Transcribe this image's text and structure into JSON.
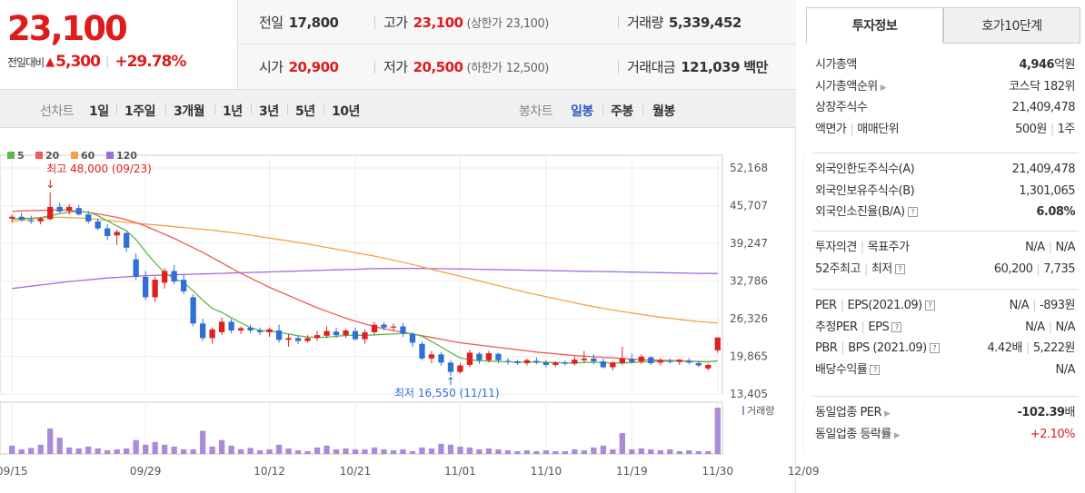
{
  "price": {
    "current": "23,100",
    "change_label": "전일대비",
    "change_amount": "5,300",
    "change_pct": "+29.78%"
  },
  "summary": {
    "prev_close_label": "전일",
    "prev_close": "17,800",
    "high_label": "고가",
    "high": "23,100",
    "upper_limit_label": "(상한가",
    "upper_limit": "23,100)",
    "volume_label": "거래량",
    "volume": "5,339,452",
    "open_label": "시가",
    "open": "20,900",
    "low_label": "저가",
    "low": "20,500",
    "lower_limit_label": "(하한가",
    "lower_limit": "12,500)",
    "trade_value_label": "거래대금",
    "trade_value": "121,039",
    "trade_value_unit": "백만"
  },
  "period_bar": {
    "line_chart_label": "선차트",
    "line_periods": [
      "1일",
      "1주일",
      "3개월",
      "1년",
      "3년",
      "5년",
      "10년"
    ],
    "candle_label": "봉차트",
    "candle_periods": [
      "일봉",
      "주봉",
      "월봉"
    ],
    "candle_selected": "일봉"
  },
  "chart_data": {
    "type": "candlestick",
    "legend": [
      {
        "name": "5",
        "color": "#5bb84a"
      },
      {
        "name": "20",
        "color": "#ef5a5a"
      },
      {
        "name": "60",
        "color": "#f5a04a"
      },
      {
        "name": "120",
        "color": "#a36be0"
      }
    ],
    "ylim": [
      13405,
      52168
    ],
    "y_ticks": [
      "52,168",
      "45,707",
      "39,247",
      "32,786",
      "26,326",
      "19,865",
      "13,405"
    ],
    "x_ticks": [
      "09/15",
      "09/29",
      "10/12",
      "10/21",
      "11/01",
      "11/10",
      "11/19",
      "11/30",
      "12/09"
    ],
    "annotation_high": "최고 48,000 (09/23)",
    "annotation_low": "최저 16,550 (11/11)",
    "volume_label": "거래량",
    "colors": {
      "up": "#e02020",
      "down": "#2f6fd6"
    },
    "candles": [
      [
        43500,
        44200,
        42800,
        43800
      ],
      [
        43800,
        44500,
        43000,
        43300
      ],
      [
        43200,
        44000,
        42600,
        43000
      ],
      [
        43000,
        43800,
        42500,
        43500
      ],
      [
        43400,
        48000,
        43200,
        45500
      ],
      [
        45500,
        46200,
        44400,
        44700
      ],
      [
        44800,
        46000,
        44200,
        45500
      ],
      [
        45300,
        45800,
        44000,
        44200
      ],
      [
        44200,
        44800,
        42600,
        43000
      ],
      [
        43000,
        43500,
        41500,
        41800
      ],
      [
        41800,
        42500,
        39800,
        40500
      ],
      [
        40600,
        41600,
        39000,
        41200
      ],
      [
        41000,
        41300,
        37800,
        38500
      ],
      [
        36500,
        37500,
        33000,
        33500
      ],
      [
        33500,
        34500,
        29500,
        30000
      ],
      [
        30000,
        33500,
        29200,
        33000
      ],
      [
        32500,
        35000,
        31500,
        34500
      ],
      [
        34500,
        35500,
        32200,
        32700
      ],
      [
        33000,
        33800,
        30500,
        31000
      ],
      [
        30000,
        30500,
        25000,
        25500
      ],
      [
        25500,
        26300,
        22500,
        23000
      ],
      [
        23000,
        24800,
        22000,
        24500
      ],
      [
        24000,
        26500,
        23500,
        25800
      ],
      [
        25800,
        26300,
        23800,
        24300
      ],
      [
        24300,
        25000,
        23700,
        24700
      ],
      [
        24800,
        25300,
        23900,
        24300
      ],
      [
        24300,
        24800,
        23500,
        24000
      ],
      [
        24000,
        24800,
        23200,
        24500
      ],
      [
        24300,
        25300,
        22200,
        22700
      ],
      [
        22700,
        23700,
        21500,
        23000
      ],
      [
        23000,
        23300,
        22000,
        22500
      ],
      [
        22500,
        23500,
        22200,
        23000
      ],
      [
        23000,
        24200,
        22500,
        23500
      ],
      [
        23400,
        25000,
        23000,
        24200
      ],
      [
        24100,
        24800,
        23000,
        23500
      ],
      [
        23500,
        24600,
        23000,
        24300
      ],
      [
        24200,
        24800,
        22600,
        22800
      ],
      [
        22800,
        24500,
        22000,
        24000
      ],
      [
        24000,
        25800,
        23600,
        25300
      ],
      [
        25300,
        25800,
        24300,
        24800
      ],
      [
        24800,
        25500,
        24200,
        25000
      ],
      [
        25000,
        25600,
        23200,
        23800
      ],
      [
        23700,
        24000,
        21500,
        22200
      ],
      [
        22000,
        22400,
        19200,
        19500
      ],
      [
        19500,
        20800,
        18700,
        20200
      ],
      [
        20200,
        20600,
        18300,
        18800
      ],
      [
        18800,
        19200,
        16550,
        17200
      ],
      [
        17200,
        18700,
        16900,
        18300
      ],
      [
        18400,
        21000,
        18000,
        20500
      ],
      [
        20300,
        20600,
        18600,
        19200
      ],
      [
        19200,
        20800,
        18800,
        20400
      ],
      [
        20300,
        20500,
        18700,
        19200
      ],
      [
        19100,
        19600,
        18500,
        19000
      ],
      [
        19000,
        19300,
        18400,
        18700
      ],
      [
        18700,
        19500,
        18300,
        19200
      ],
      [
        19100,
        19700,
        18500,
        18800
      ],
      [
        18800,
        19200,
        18000,
        18400
      ],
      [
        18400,
        19000,
        18000,
        18800
      ],
      [
        18800,
        19200,
        18300,
        18600
      ],
      [
        18600,
        19800,
        18300,
        19300
      ],
      [
        19200,
        20800,
        18800,
        19500
      ],
      [
        19500,
        20200,
        18500,
        19000
      ],
      [
        19000,
        19500,
        17800,
        18000
      ],
      [
        18000,
        19000,
        17500,
        18800
      ],
      [
        18700,
        21500,
        18400,
        19500
      ],
      [
        19400,
        20300,
        18600,
        18900
      ],
      [
        19000,
        20200,
        18600,
        19800
      ],
      [
        19700,
        19900,
        18400,
        18700
      ],
      [
        18800,
        19600,
        18300,
        19200
      ],
      [
        19100,
        19500,
        18600,
        18900
      ],
      [
        18900,
        19400,
        18400,
        19300
      ],
      [
        19100,
        19600,
        18500,
        18800
      ],
      [
        18700,
        19100,
        18000,
        18300
      ],
      [
        17800,
        18600,
        17400,
        18400
      ],
      [
        20900,
        23100,
        20500,
        23100
      ]
    ],
    "volumes": [
      0.18,
      0.1,
      0.13,
      0.2,
      0.55,
      0.35,
      0.14,
      0.12,
      0.16,
      0.12,
      0.08,
      0.1,
      0.12,
      0.3,
      0.2,
      0.26,
      0.2,
      0.16,
      0.1,
      0.1,
      0.5,
      0.16,
      0.3,
      0.18,
      0.1,
      0.13,
      0.08,
      0.1,
      0.2,
      0.12,
      0.08,
      0.06,
      0.14,
      0.18,
      0.1,
      0.12,
      0.1,
      0.1,
      0.14,
      0.1,
      0.08,
      0.1,
      0.06,
      0.14,
      0.12,
      0.22,
      0.2,
      0.16,
      0.14,
      0.1,
      0.12,
      0.1,
      0.08,
      0.06,
      0.08,
      0.06,
      0.08,
      0.06,
      0.06,
      0.1,
      0.08,
      0.14,
      0.18,
      0.1,
      0.45,
      0.1,
      0.12,
      0.1,
      0.08,
      0.1,
      0.06,
      0.08,
      0.06,
      0.06,
      1.0
    ],
    "ma5": [
      43400,
      43500,
      43550,
      43650,
      44000,
      44300,
      44600,
      44700,
      44600,
      44000,
      43100,
      42200,
      41400,
      39900,
      37800,
      35900,
      34200,
      33200,
      32500,
      31100,
      29500,
      28100,
      27400,
      26500,
      25600,
      24800,
      24300,
      24200,
      24000,
      23700,
      23400,
      23200,
      23100,
      23150,
      23300,
      23450,
      23500,
      23450,
      23550,
      23650,
      23700,
      23800,
      23750,
      23300,
      22400,
      21500,
      20500,
      19600,
      19300,
      19100,
      19050,
      19000,
      18950,
      18900,
      18850,
      18900,
      18850,
      18800,
      18750,
      18750,
      18800,
      18850,
      18800,
      18700,
      18750,
      18800,
      18900,
      19000,
      19000,
      19050,
      19050,
      19000,
      18950,
      18900,
      19100
    ],
    "ma20": [
      44700,
      44800,
      44850,
      44900,
      44950,
      45000,
      44900,
      44750,
      44550,
      44300,
      44000,
      43700,
      43300,
      42800,
      42200,
      41500,
      40800,
      40100,
      39300,
      38500,
      37700,
      36800,
      35900,
      35000,
      34100,
      33300,
      32500,
      31700,
      31000,
      30300,
      29600,
      28900,
      28200,
      27600,
      27000,
      26400,
      25900,
      25400,
      25000,
      24600,
      24300,
      24000,
      23700,
      23400,
      23100,
      22800,
      22500,
      22200,
      22000,
      21800,
      21600,
      21400,
      21200,
      21000,
      20800,
      20600,
      20450,
      20300,
      20150,
      20000,
      19900,
      19800,
      19700,
      19600,
      19500,
      19400,
      19300,
      19250,
      19200,
      19150,
      19100,
      19050,
      19000,
      18950,
      19100
    ],
    "ma60": [
      43000,
      43200,
      43400,
      43600,
      43700,
      43700,
      43650,
      43600,
      43500,
      43350,
      43200,
      43000,
      42850,
      42700,
      42550,
      42400,
      42250,
      42100,
      41950,
      41800,
      41650,
      41500,
      41300,
      41100,
      40900,
      40650,
      40400,
      40150,
      39900,
      39650,
      39400,
      39150,
      38850,
      38550,
      38250,
      37950,
      37650,
      37350,
      37050,
      36700,
      36350,
      36000,
      35600,
      35200,
      34800,
      34400,
      34000,
      33600,
      33200,
      32800,
      32400,
      32000,
      31600,
      31200,
      30800,
      30450,
      30100,
      29750,
      29400,
      29050,
      28700,
      28400,
      28100,
      27800,
      27550,
      27300,
      27050,
      26800,
      26600,
      26400,
      26200,
      26000,
      25850,
      25700,
      25550
    ],
    "ma120": [
      31500,
      31700,
      31900,
      32100,
      32300,
      32500,
      32700,
      32850,
      33000,
      33150,
      33300,
      33400,
      33500,
      33600,
      33700,
      33750,
      33800,
      33850,
      33900,
      33950,
      34000,
      34050,
      34100,
      34150,
      34200,
      34250,
      34300,
      34350,
      34400,
      34450,
      34500,
      34550,
      34600,
      34650,
      34700,
      34750,
      34800,
      34850,
      34900,
      34920,
      34940,
      34950,
      34950,
      34940,
      34920,
      34900,
      34880,
      34850,
      34820,
      34790,
      34760,
      34730,
      34700,
      34670,
      34640,
      34610,
      34580,
      34550,
      34520,
      34490,
      34460,
      34430,
      34400,
      34370,
      34340,
      34310,
      34280,
      34250,
      34220,
      34190,
      34160,
      34130,
      34100,
      34080,
      34060
    ]
  },
  "tabs": [
    "투자정보",
    "호가10단계"
  ],
  "invest_info": {
    "g1": [
      {
        "k": "시가총액",
        "v": "4,946",
        "u": "억원",
        "bold": true
      },
      {
        "k": "시가총액순위",
        "v": "코스닥 182위",
        "caret": true
      },
      {
        "k": "상장주식수",
        "v": "21,409,478"
      },
      {
        "k": "액면가",
        "k2": "매매단위",
        "v": "500원",
        "v2": "1주"
      }
    ],
    "g2": [
      {
        "k": "외국인한도주식수(A)",
        "v": "21,409,478"
      },
      {
        "k": "외국인보유주식수(B)",
        "v": "1,301,065"
      },
      {
        "k": "외국인소진율(B/A)",
        "v": "6.08%",
        "q": true,
        "bold": true
      }
    ],
    "g3": [
      {
        "k": "투자의견",
        "k2": "목표주가",
        "v": "N/A",
        "v2": "N/A"
      },
      {
        "k": "52주최고",
        "k2": "최저",
        "v": "60,200",
        "v2": "7,735",
        "q": true
      }
    ],
    "g4": [
      {
        "k": "PER",
        "k2": "EPS(2021.09)",
        "v": "N/A",
        "v2": "-893원",
        "q": true
      },
      {
        "k": "추정PER",
        "k2": "EPS",
        "v": "N/A",
        "v2": "N/A",
        "q": true
      },
      {
        "k": "PBR",
        "k2": "BPS (2021.09)",
        "v": "4.42배",
        "v2": "5,222원",
        "q": true
      },
      {
        "k": "배당수익률",
        "v": "N/A",
        "q": true
      }
    ],
    "g5": [
      {
        "k": "동일업종 PER",
        "v": "-102.39",
        "u": "배",
        "caret": true,
        "bold": true
      },
      {
        "k": "동일업종 등락률",
        "v": "+2.10%",
        "caret": true,
        "red": true
      }
    ]
  }
}
